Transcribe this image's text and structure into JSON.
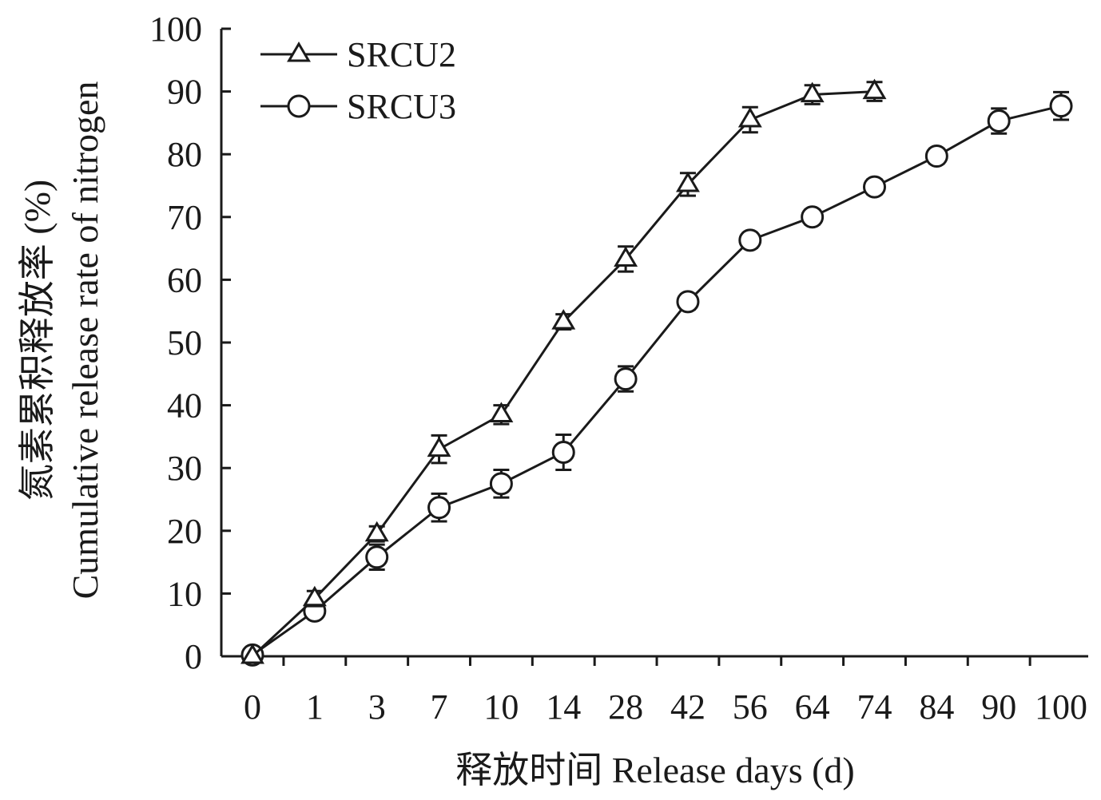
{
  "chart_data": {
    "type": "line",
    "xlabel": "释放时间 Release days (d)",
    "ylabel": "氮素累积释放率 (%)",
    "ylabel_en": "Cumulative release rate of nitrogen",
    "categories": [
      "0",
      "1",
      "3",
      "7",
      "10",
      "14",
      "28",
      "42",
      "56",
      "64",
      "74",
      "84",
      "90",
      "100"
    ],
    "ylim": [
      0,
      100
    ],
    "yticks": [
      "0",
      "10",
      "20",
      "30",
      "40",
      "50",
      "60",
      "70",
      "80",
      "90",
      "100"
    ],
    "grid": false,
    "legend_position": "top-left",
    "series": [
      {
        "name": "SRCU2",
        "marker": "triangle",
        "values": [
          0.0,
          9.2,
          19.5,
          33.0,
          38.5,
          53.3,
          63.3,
          75.2,
          85.5,
          89.5,
          90.0,
          null,
          null,
          null
        ],
        "errors": [
          0.0,
          1.2,
          1.2,
          2.2,
          1.5,
          1.2,
          2.0,
          1.8,
          2.0,
          1.5,
          1.5,
          null,
          null,
          null
        ]
      },
      {
        "name": "SRCU3",
        "marker": "circle",
        "values": [
          0.2,
          7.2,
          15.8,
          23.7,
          27.5,
          32.5,
          44.2,
          56.5,
          66.3,
          70.0,
          74.8,
          79.7,
          85.3,
          87.7
        ],
        "errors": [
          0.0,
          1.0,
          2.0,
          2.2,
          2.2,
          2.8,
          2.0,
          1.2,
          1.2,
          1.2,
          1.2,
          1.2,
          2.0,
          2.2
        ]
      }
    ]
  },
  "colors": {
    "line": "#1a1a1a",
    "marker_fill": "#ffffff",
    "background": "#ffffff"
  }
}
